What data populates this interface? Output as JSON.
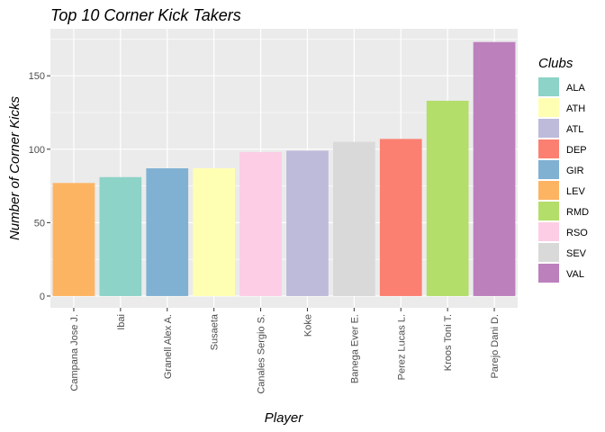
{
  "chart_data": {
    "type": "bar",
    "title": "Top 10 Corner Kick Takers",
    "xlabel": "Player",
    "ylabel": "Number of Corner Kicks",
    "ylim": [
      -8,
      182
    ],
    "yticks": [
      0,
      50,
      100,
      150
    ],
    "grid": true,
    "legend_position": "right",
    "legend_title": "Clubs",
    "categories": [
      "Campana Jose J.",
      "Ibai",
      "Granell Alex A.",
      "Susaeta",
      "Canales Sergio S.",
      "Koke",
      "Banega Ever E.",
      "Perez Lucas L.",
      "Kroos Toni T.",
      "Parejo Dani D."
    ],
    "values": [
      77,
      81,
      87,
      87,
      98,
      99,
      105,
      107,
      133,
      173
    ],
    "bar_clubs": [
      "LEV",
      "ALA",
      "GIR",
      "ATH",
      "RSO",
      "ATL",
      "SEV",
      "DEP",
      "RMD",
      "VAL"
    ],
    "legend": [
      {
        "label": "ALA",
        "color": "#8DD3C7"
      },
      {
        "label": "ATH",
        "color": "#FFFFB3"
      },
      {
        "label": "ATL",
        "color": "#BEBADA"
      },
      {
        "label": "DEP",
        "color": "#FB8072"
      },
      {
        "label": "GIR",
        "color": "#80B1D3"
      },
      {
        "label": "LEV",
        "color": "#FDB462"
      },
      {
        "label": "RMD",
        "color": "#B3DE69"
      },
      {
        "label": "RSO",
        "color": "#FCCDE5"
      },
      {
        "label": "SEV",
        "color": "#D9D9D9"
      },
      {
        "label": "VAL",
        "color": "#BC80BD"
      }
    ]
  }
}
